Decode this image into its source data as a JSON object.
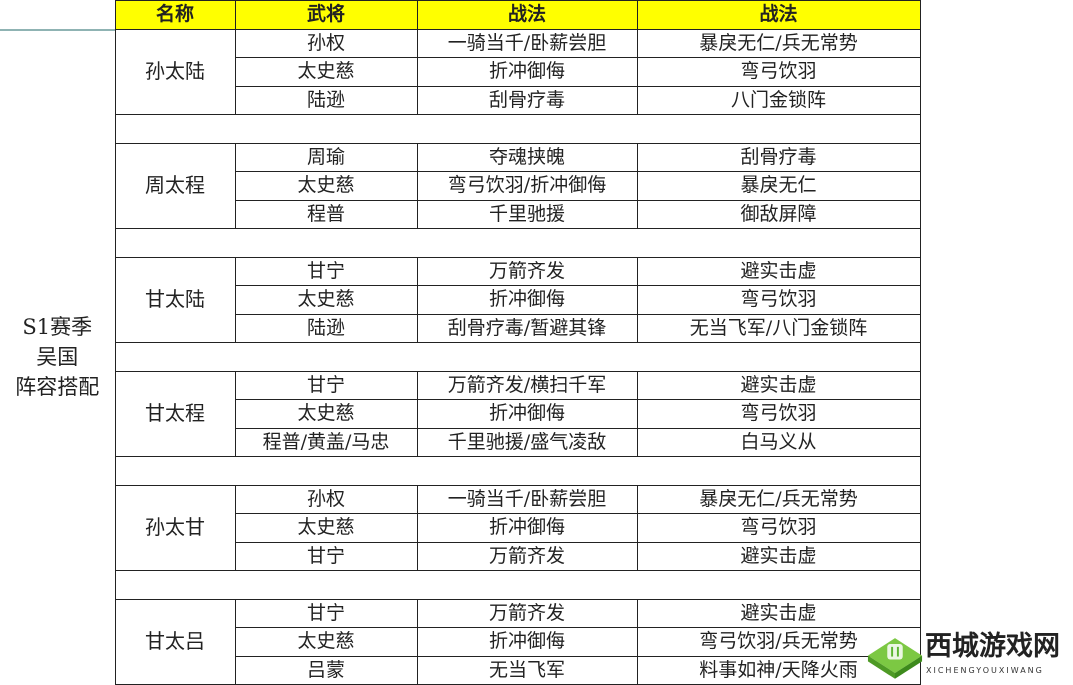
{
  "header": {
    "name": "名称",
    "general": "武将",
    "tactic1": "战法",
    "tactic2": "战法"
  },
  "side_label": "S1赛季\n吴国\n阵容搭配",
  "groups": [
    {
      "name": "孙太陆",
      "rows": [
        [
          "孙权",
          "一骑当千/卧薪尝胆",
          "暴戾无仁/兵无常势"
        ],
        [
          "太史慈",
          "折冲御侮",
          "弯弓饮羽"
        ],
        [
          "陆逊",
          "刮骨疗毒",
          "八门金锁阵"
        ]
      ]
    },
    {
      "name": "周太程",
      "rows": [
        [
          "周瑜",
          "夺魂挟魄",
          "刮骨疗毒"
        ],
        [
          "太史慈",
          "弯弓饮羽/折冲御侮",
          "暴戾无仁"
        ],
        [
          "程普",
          "千里驰援",
          "御敌屏障"
        ]
      ]
    },
    {
      "name": "甘太陆",
      "rows": [
        [
          "甘宁",
          "万箭齐发",
          "避实击虚"
        ],
        [
          "太史慈",
          "折冲御侮",
          "弯弓饮羽"
        ],
        [
          "陆逊",
          "刮骨疗毒/暂避其锋",
          "无当飞军/八门金锁阵"
        ]
      ]
    },
    {
      "name": "甘太程",
      "rows": [
        [
          "甘宁",
          "万箭齐发/横扫千军",
          "避实击虚"
        ],
        [
          "太史慈",
          "折冲御侮",
          "弯弓饮羽"
        ],
        [
          "程普/黄盖/马忠",
          "千里驰援/盛气凌敌",
          "白马义从"
        ]
      ]
    },
    {
      "name": "孙太甘",
      "rows": [
        [
          "孙权",
          "一骑当千/卧薪尝胆",
          "暴戾无仁/兵无常势"
        ],
        [
          "太史慈",
          "折冲御侮",
          "弯弓饮羽"
        ],
        [
          "甘宁",
          "万箭齐发",
          "避实击虚"
        ]
      ]
    },
    {
      "name": "甘太吕",
      "rows": [
        [
          "甘宁",
          "万箭齐发",
          "避实击虚"
        ],
        [
          "太史慈",
          "折冲御侮",
          "弯弓饮羽/兵无常势"
        ],
        [
          "吕蒙",
          "无当飞军",
          "料事如神/天降火雨"
        ]
      ]
    }
  ],
  "watermark": {
    "text": "西城游戏网",
    "sub": "XICHENGYOUXIWANG",
    "logo_color": "#5cb531"
  },
  "colors": {
    "header_bg": "#ffff00"
  }
}
